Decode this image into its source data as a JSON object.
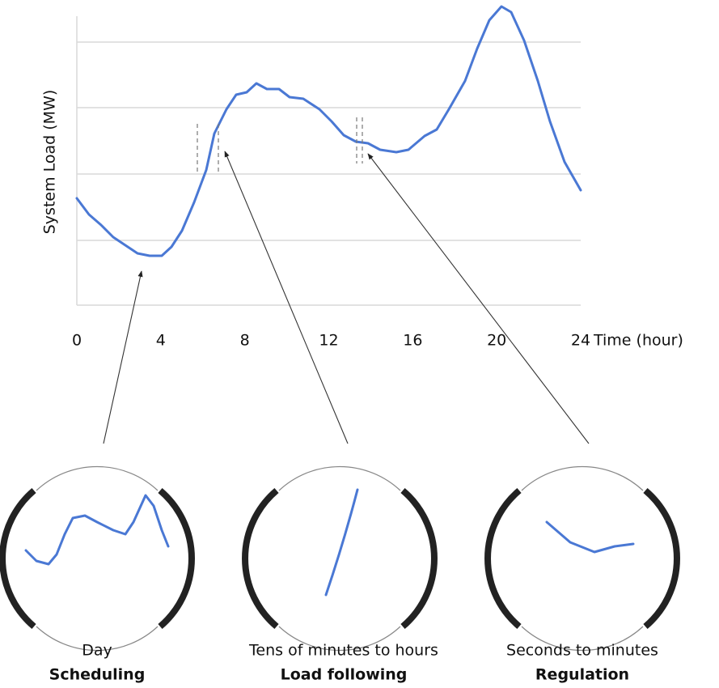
{
  "y_axis_label": "System Load (MW)",
  "x_ticks": [
    "0",
    "4",
    "8",
    "12",
    "16",
    "20",
    "24"
  ],
  "x_axis_label": "Time (hour)",
  "lenses": [
    {
      "caption": "Day",
      "label": "Scheduling"
    },
    {
      "caption": "Tens of minutes to hours",
      "label": "Load following"
    },
    {
      "caption": "Seconds to minutes",
      "label": "Regulation"
    }
  ]
}
